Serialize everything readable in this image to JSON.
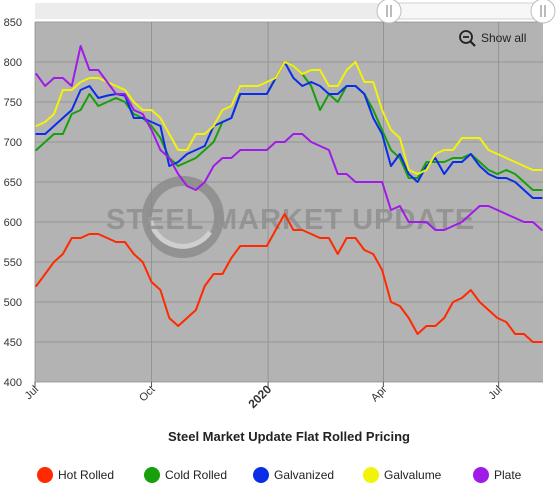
{
  "zoom_control": {
    "label": "Show all",
    "icon": "zoom-out-icon"
  },
  "watermark": {
    "text": "STEEL MARKET UPDATE"
  },
  "chart_data": {
    "type": "line",
    "title": "Steel Market Update Flat Rolled Pricing",
    "xlabel": "",
    "ylabel": "",
    "ylim": [
      400,
      850
    ],
    "yticks": [
      400,
      450,
      500,
      550,
      600,
      650,
      700,
      750,
      800,
      850
    ],
    "xlim": [
      "2019-07-01",
      "2020-08-05"
    ],
    "xticks": [
      {
        "label": "Jul",
        "date": "2019-07-01",
        "bold": false
      },
      {
        "label": "Oct",
        "date": "2019-10-01",
        "bold": false
      },
      {
        "label": "2020",
        "date": "2020-01-01",
        "bold": true
      },
      {
        "label": "Apr",
        "date": "2020-04-01",
        "bold": false
      },
      {
        "label": "Jul",
        "date": "2020-07-01",
        "bold": false
      }
    ],
    "grid": true,
    "legend_position": "bottom",
    "x": [
      "2019-07-02",
      "2019-07-09",
      "2019-07-16",
      "2019-07-23",
      "2019-07-30",
      "2019-08-06",
      "2019-08-13",
      "2019-08-20",
      "2019-08-27",
      "2019-09-03",
      "2019-09-10",
      "2019-09-17",
      "2019-09-24",
      "2019-10-01",
      "2019-10-08",
      "2019-10-15",
      "2019-10-22",
      "2019-10-29",
      "2019-11-05",
      "2019-11-12",
      "2019-11-19",
      "2019-11-26",
      "2019-12-03",
      "2019-12-10",
      "2019-12-17",
      "2019-12-24",
      "2019-12-31",
      "2020-01-07",
      "2020-01-14",
      "2020-01-21",
      "2020-01-28",
      "2020-02-04",
      "2020-02-11",
      "2020-02-18",
      "2020-02-25",
      "2020-03-03",
      "2020-03-10",
      "2020-03-17",
      "2020-03-24",
      "2020-03-31",
      "2020-04-07",
      "2020-04-14",
      "2020-04-21",
      "2020-04-28",
      "2020-05-05",
      "2020-05-12",
      "2020-05-19",
      "2020-05-26",
      "2020-06-02",
      "2020-06-09",
      "2020-06-16",
      "2020-06-23",
      "2020-06-30",
      "2020-07-07",
      "2020-07-14",
      "2020-07-21",
      "2020-07-28",
      "2020-08-04"
    ],
    "series": [
      {
        "name": "Hot Rolled",
        "color": "#ff2a00",
        "values": [
          520,
          535,
          550,
          560,
          580,
          580,
          585,
          585,
          580,
          575,
          575,
          560,
          550,
          525,
          515,
          480,
          470,
          480,
          490,
          520,
          535,
          535,
          555,
          570,
          570,
          570,
          570,
          590,
          610,
          590,
          590,
          585,
          580,
          580,
          560,
          580,
          580,
          565,
          560,
          540,
          500,
          495,
          480,
          460,
          470,
          470,
          480,
          500,
          505,
          515,
          500,
          490,
          480,
          475,
          460,
          460,
          450,
          450
        ]
      },
      {
        "name": "Cold Rolled",
        "color": "#16a00c",
        "values": [
          690,
          700,
          710,
          710,
          735,
          740,
          760,
          745,
          750,
          755,
          750,
          735,
          730,
          720,
          705,
          680,
          670,
          675,
          680,
          690,
          700,
          725,
          730,
          760,
          760,
          760,
          760,
          780,
          800,
          795,
          785,
          770,
          740,
          760,
          750,
          770,
          770,
          760,
          740,
          715,
          690,
          680,
          655,
          655,
          675,
          675,
          675,
          680,
          680,
          685,
          675,
          665,
          660,
          665,
          660,
          650,
          640,
          640
        ]
      },
      {
        "name": "Galvanized",
        "color": "#0a2ee6",
        "values": [
          710,
          710,
          720,
          730,
          740,
          765,
          770,
          755,
          758,
          760,
          758,
          730,
          730,
          725,
          720,
          670,
          675,
          685,
          690,
          695,
          720,
          725,
          730,
          760,
          760,
          760,
          760,
          780,
          800,
          780,
          770,
          775,
          770,
          760,
          760,
          770,
          770,
          760,
          730,
          710,
          670,
          685,
          660,
          650,
          670,
          680,
          660,
          675,
          675,
          685,
          670,
          660,
          655,
          655,
          650,
          640,
          630,
          630
        ]
      },
      {
        "name": "Galvalume",
        "color": "#f2f20a",
        "values": [
          720,
          725,
          735,
          765,
          765,
          775,
          780,
          780,
          775,
          770,
          765,
          750,
          740,
          740,
          730,
          710,
          690,
          690,
          710,
          710,
          720,
          740,
          745,
          770,
          770,
          770,
          775,
          780,
          800,
          795,
          785,
          790,
          790,
          770,
          770,
          790,
          800,
          775,
          775,
          740,
          715,
          705,
          665,
          660,
          665,
          685,
          690,
          690,
          705,
          705,
          705,
          690,
          685,
          680,
          675,
          670,
          665,
          665
        ]
      },
      {
        "name": "Plate",
        "color": "#a11be8",
        "values": [
          785,
          770,
          780,
          780,
          770,
          820,
          790,
          790,
          775,
          760,
          760,
          740,
          735,
          715,
          690,
          680,
          660,
          645,
          640,
          650,
          670,
          680,
          680,
          690,
          690,
          690,
          690,
          700,
          700,
          710,
          710,
          700,
          695,
          690,
          660,
          660,
          650,
          650,
          650,
          650,
          615,
          620,
          600,
          600,
          600,
          590,
          590,
          595,
          600,
          610,
          620,
          620,
          615,
          610,
          605,
          600,
          600,
          590
        ]
      }
    ]
  }
}
